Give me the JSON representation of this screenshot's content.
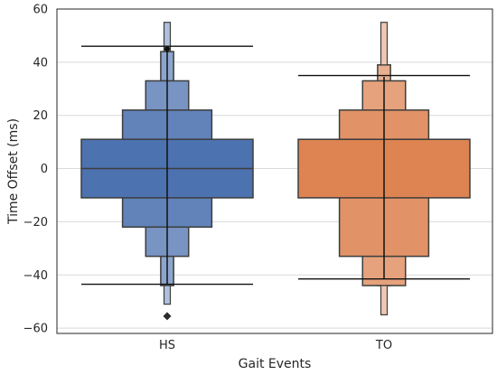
{
  "chart_data": {
    "type": "boxenplot",
    "xlabel": "Gait Events",
    "ylabel": "Time Offset (ms)",
    "categories": [
      "HS",
      "TO"
    ],
    "y_ticks": [
      -60,
      -40,
      -20,
      0,
      20,
      40,
      60
    ],
    "y_tick_labels": [
      "−60",
      "−40",
      "−20",
      "0",
      "20",
      "40",
      "60"
    ],
    "ylim": [
      -62,
      60
    ],
    "grid": "horizontal",
    "colors": {
      "HS": "#4c72b0",
      "TO": "#dd8452",
      "edge": "#3d3d3d",
      "grid": "#d9d9d9",
      "frame": "#262626"
    },
    "groups": [
      {
        "name": "HS",
        "median": 0,
        "mean_marker": 45,
        "mean_line_range": [
          -43.5,
          45.5
        ],
        "whisker_lines": [
          46,
          -43.5
        ],
        "tail_range": [
          -51,
          55
        ],
        "outliers": [
          -55.5
        ],
        "levels": [
          {
            "low": -11,
            "high": 11
          },
          {
            "low": -22,
            "high": 22
          },
          {
            "low": -33,
            "high": 33
          },
          {
            "low": -44,
            "high": 44
          }
        ]
      },
      {
        "name": "TO",
        "median": 11,
        "mean_marker": null,
        "mean_line_range": [
          -41.5,
          34.5
        ],
        "whisker_lines": [
          35,
          -41.5
        ],
        "tail_range": [
          -55,
          55
        ],
        "outliers": [],
        "levels": [
          {
            "low": -11,
            "high": 11
          },
          {
            "low": -33,
            "high": 22
          },
          {
            "low": -44,
            "high": 33
          },
          {
            "low": -44,
            "high": 39
          }
        ]
      }
    ]
  }
}
